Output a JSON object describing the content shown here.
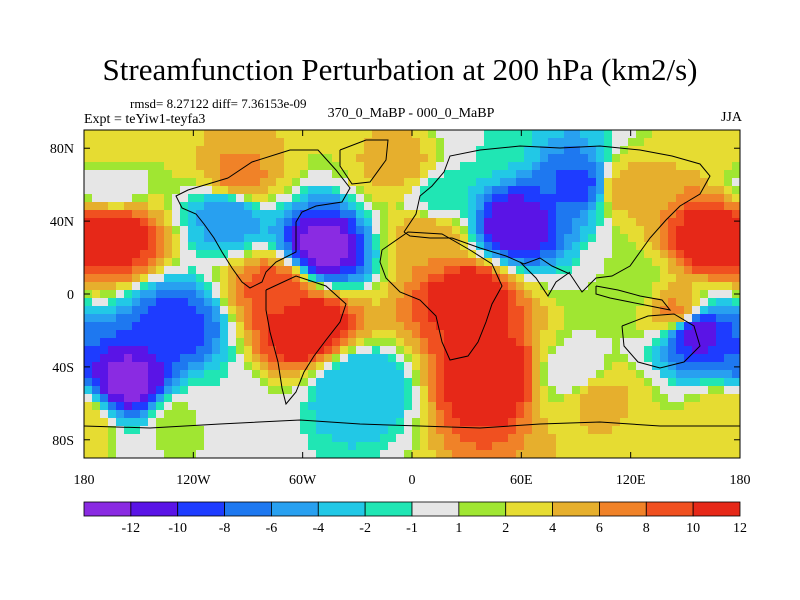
{
  "title": "Streamfunction Perturbation at 200 hPa (km2/s)",
  "stats": "rmsd= 8.27122 diff= 7.36153e-09",
  "experiment_label": "Expt = teYiw1-teyfa3",
  "experiment_compare": "370_0_MaBP - 000_0_MaBP",
  "season": "JJA",
  "map": {
    "lon_range": [
      -180,
      180
    ],
    "lat_range": [
      -90,
      90
    ],
    "lon_ticks": [
      {
        "value": -180,
        "label": "180"
      },
      {
        "value": -120,
        "label": "120W"
      },
      {
        "value": -60,
        "label": "60W"
      },
      {
        "value": 0,
        "label": "0"
      },
      {
        "value": 60,
        "label": "60E"
      },
      {
        "value": 120,
        "label": "120E"
      },
      {
        "value": 180,
        "label": "180"
      }
    ],
    "lat_ticks": [
      {
        "value": 80,
        "label": "80N"
      },
      {
        "value": 40,
        "label": "40N"
      },
      {
        "value": 0,
        "label": "0"
      },
      {
        "value": -40,
        "label": "40S"
      },
      {
        "value": -80,
        "label": "80S"
      }
    ],
    "fields": [
      {
        "lon": -165,
        "lat": 32,
        "value": 12
      },
      {
        "lon": 165,
        "lat": 30,
        "value": 12
      },
      {
        "lon": -95,
        "lat": 62,
        "value": 7
      },
      {
        "lon": -165,
        "lat": 78,
        "value": 4
      },
      {
        "lon": -75,
        "lat": 4,
        "value": 9
      },
      {
        "lon": -58,
        "lat": -18,
        "value": 13
      },
      {
        "lon": 30,
        "lat": 0,
        "value": 12
      },
      {
        "lon": 45,
        "lat": -45,
        "value": 13
      },
      {
        "lon": 145,
        "lat": -10,
        "value": 7
      },
      {
        "lon": 115,
        "lat": 58,
        "value": 6
      },
      {
        "lon": -5,
        "lat": 70,
        "value": 5
      },
      {
        "lon": 10,
        "lat": 30,
        "value": 6
      },
      {
        "lon": -125,
        "lat": -70,
        "value": 2
      },
      {
        "lon": 175,
        "lat": -70,
        "value": 4
      },
      {
        "lon": 100,
        "lat": -55,
        "value": 5
      },
      {
        "lon": -50,
        "lat": 25,
        "value": -13
      },
      {
        "lon": 55,
        "lat": 38,
        "value": -12
      },
      {
        "lon": 95,
        "lat": 60,
        "value": -9
      },
      {
        "lon": -155,
        "lat": -48,
        "value": -13
      },
      {
        "lon": -130,
        "lat": -18,
        "value": -9
      },
      {
        "lon": 155,
        "lat": -20,
        "value": -12
      },
      {
        "lon": -100,
        "lat": 45,
        "value": -6
      },
      {
        "lon": -165,
        "lat": 62,
        "value": -1
      },
      {
        "lon": -30,
        "lat": -50,
        "value": -4
      },
      {
        "lon": 15,
        "lat": 55,
        "value": -2
      },
      {
        "lon": -110,
        "lat": -64,
        "value": -1
      },
      {
        "lon": 90,
        "lat": -45,
        "value": -1
      },
      {
        "lon": 120,
        "lat": 5,
        "value": 1
      },
      {
        "lon": 40,
        "lat": 82,
        "value": -1
      }
    ]
  },
  "colorbar": {
    "colors": [
      "#8a2be2",
      "#5a14e6",
      "#1e3cff",
      "#1e78f0",
      "#28a0f0",
      "#22c8e6",
      "#20e6b4",
      "#e6e6e6",
      "#a0e632",
      "#e6dc32",
      "#e6af2d",
      "#f08228",
      "#f05020",
      "#e62818"
    ],
    "labels": [
      "-12",
      "-10",
      "-8",
      "-6",
      "-4",
      "-2",
      "-1",
      "1",
      "2",
      "4",
      "6",
      "8",
      "10",
      "12"
    ]
  }
}
